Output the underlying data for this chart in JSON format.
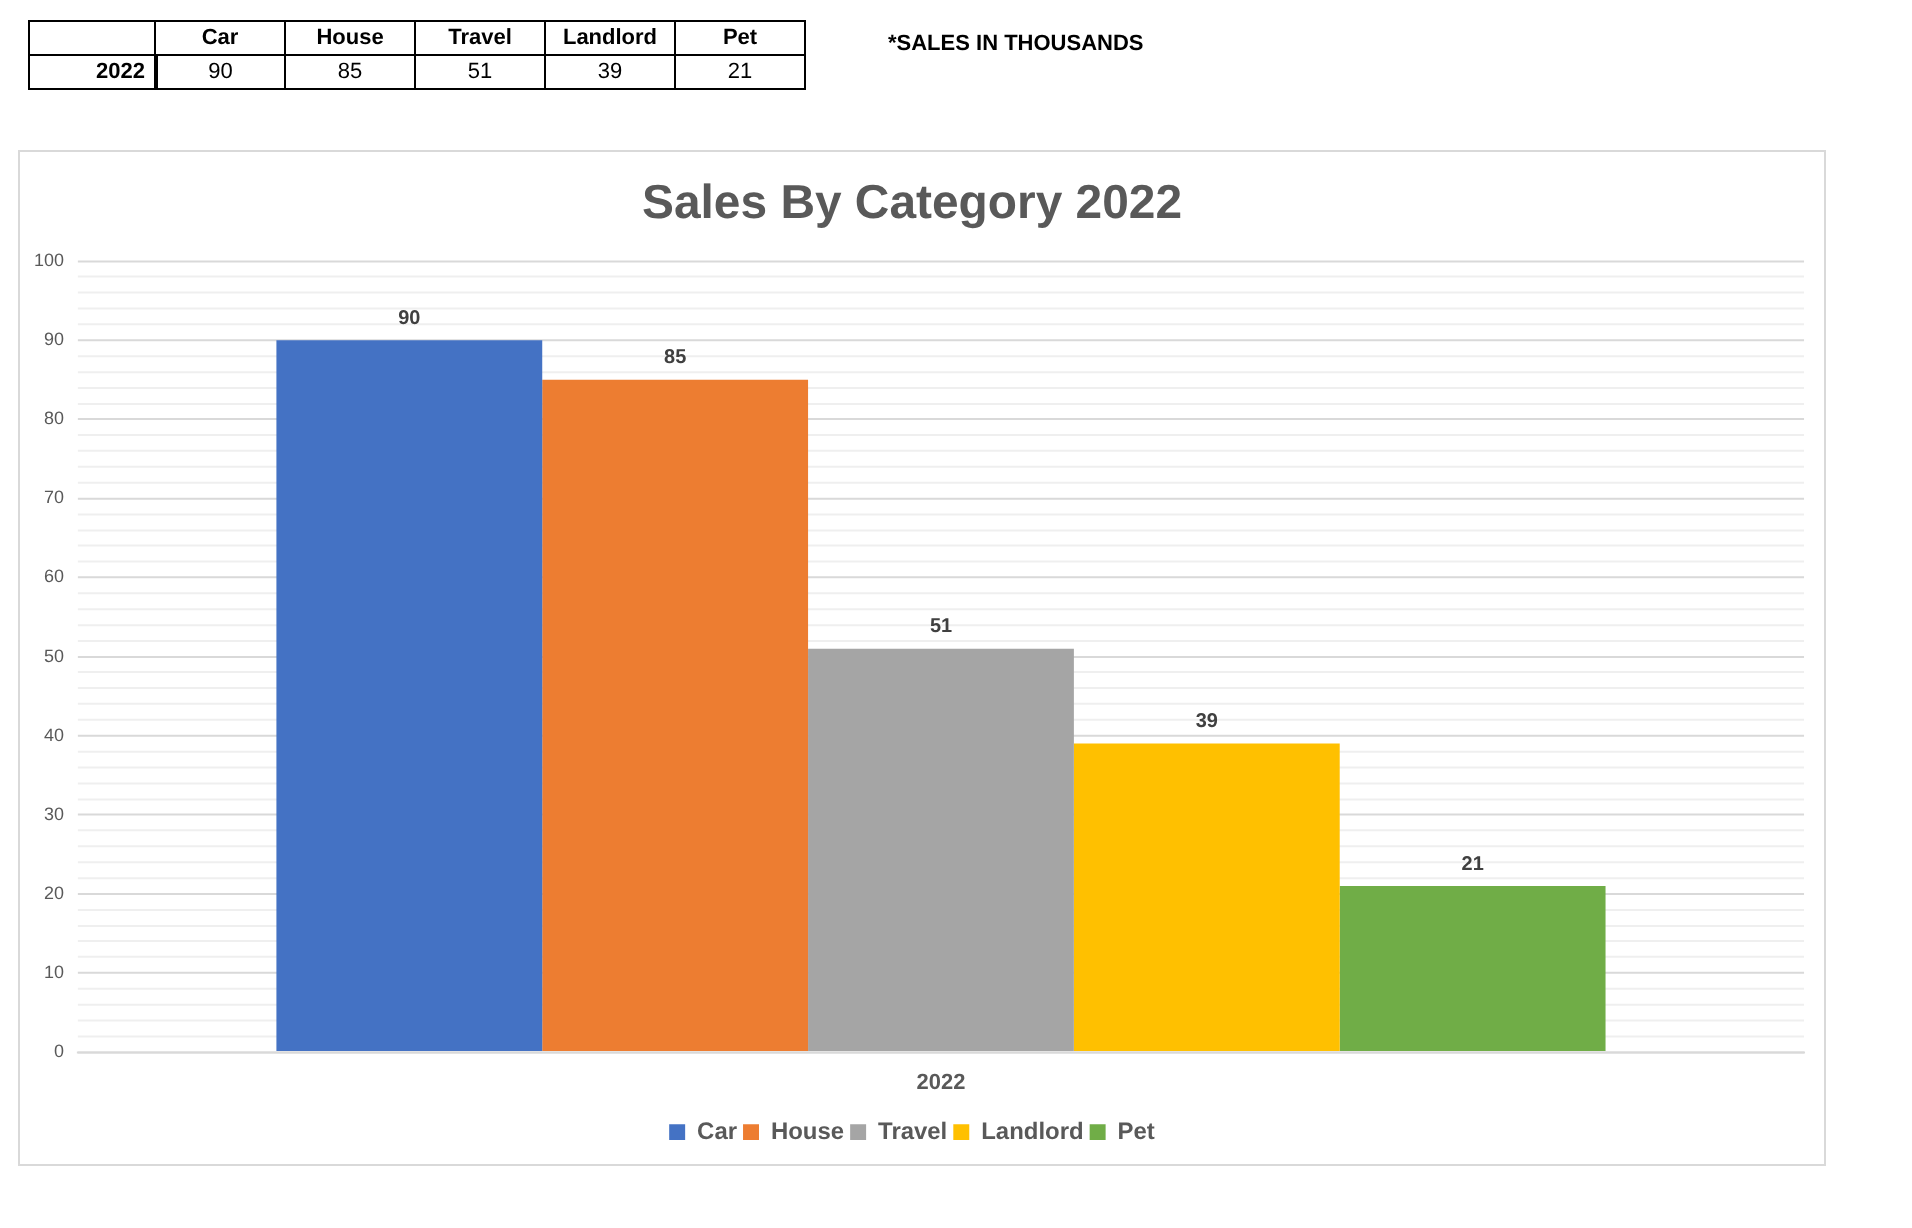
{
  "chart_data": [
    {
      "type": "other",
      "categories": [
        "Car",
        "House",
        "Travel",
        "Landlord",
        "Pet"
      ],
      "y_categories": [
        "2022"
      ],
      "cell_labels": [
        [
          "90",
          "85",
          "51",
          "39",
          "21"
        ]
      ],
      "annotations": [
        "*SALES IN THOUSANDS"
      ]
    },
    {
      "type": "bar",
      "title": "Sales By Category 2022",
      "categories": [
        "2022"
      ],
      "series": [
        {
          "name": "Car",
          "color": "#4472c4",
          "values": [
            90
          ]
        },
        {
          "name": "House",
          "color": "#ed7d31",
          "values": [
            85
          ]
        },
        {
          "name": "Travel",
          "color": "#a5a5a5",
          "values": [
            51
          ]
        },
        {
          "name": "Landlord",
          "color": "#ffc000",
          "values": [
            39
          ]
        },
        {
          "name": "Pet",
          "color": "#70ad47",
          "values": [
            21
          ]
        }
      ],
      "ylim": [
        0,
        100
      ],
      "yticks": [
        0,
        {
          "value": 2,
          "label": null
        },
        {
          "value": 4,
          "label": null
        },
        {
          "value": 6,
          "label": null
        },
        {
          "value": 8,
          "label": null
        },
        10,
        {
          "value": 12,
          "label": null
        },
        {
          "value": 14,
          "label": null
        },
        {
          "value": 16,
          "label": null
        },
        {
          "value": 18,
          "label": null
        },
        20,
        {
          "value": 22,
          "label": null
        },
        {
          "value": 24,
          "label": null
        },
        {
          "value": 26,
          "label": null
        },
        {
          "value": 28,
          "label": null
        },
        30,
        {
          "value": 32,
          "label": null
        },
        {
          "value": 34,
          "label": null
        },
        {
          "value": 36,
          "label": null
        },
        {
          "value": 38,
          "label": null
        },
        40,
        {
          "value": 42,
          "label": null
        },
        {
          "value": 44,
          "label": null
        },
        {
          "value": 46,
          "label": null
        },
        {
          "value": 48,
          "label": null
        },
        50,
        {
          "value": 52,
          "label": null
        },
        {
          "value": 54,
          "label": null
        },
        {
          "value": 56,
          "label": null
        },
        {
          "value": 58,
          "label": null
        },
        60,
        {
          "value": 62,
          "label": null
        },
        {
          "value": 64,
          "label": null
        },
        {
          "value": 66,
          "label": null
        },
        {
          "value": 68,
          "label": null
        },
        70,
        {
          "value": 72,
          "label": null
        },
        {
          "value": 74,
          "label": null
        },
        {
          "value": 76,
          "label": null
        },
        {
          "value": 78,
          "label": null
        },
        80,
        {
          "value": 82,
          "label": null
        },
        {
          "value": 84,
          "label": null
        },
        {
          "value": 86,
          "label": null
        },
        {
          "value": 88,
          "label": null
        },
        90,
        {
          "value": 92,
          "label": null
        },
        {
          "value": 94,
          "label": null
        },
        {
          "value": 96,
          "label": null
        },
        {
          "value": 98,
          "label": null
        },
        100
      ],
      "grid": "y",
      "legend": "bottom",
      "data_labels": true
    }
  ]
}
